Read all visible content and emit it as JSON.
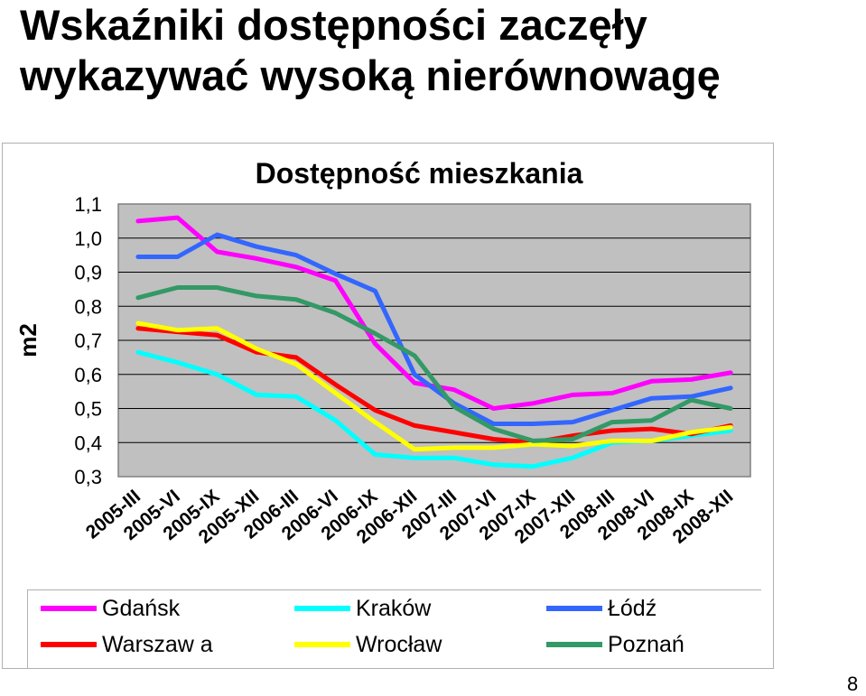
{
  "slide": {
    "title_line1": "Wskaźniki dostępności zaczęły",
    "title_line2": "wykazywać wysoką nierównowagę",
    "page_number": "8"
  },
  "chart_data": {
    "type": "line",
    "title": "Dostępność mieszkania",
    "xlabel": "",
    "ylabel": "m2",
    "ylim": [
      0.3,
      1.1
    ],
    "yticks": [
      "1,1",
      "1,0",
      "0,9",
      "0,8",
      "0,7",
      "0,6",
      "0,5",
      "0,4",
      "0,3"
    ],
    "grid": true,
    "plot_background": "#c0c0c0",
    "legend_position": "bottom",
    "categories": [
      "2005-III",
      "2005-VI",
      "2005-IX",
      "2005-XII",
      "2006-III",
      "2006-VI",
      "2006-IX",
      "2006-XII",
      "2007-III",
      "2007-VI",
      "2007-IX",
      "2007-XII",
      "2008-III",
      "2008-VI",
      "2008-IX",
      "2008-XII"
    ],
    "series": [
      {
        "name": "Gdańsk",
        "color": "#ff00ff",
        "values": [
          1.05,
          1.06,
          0.96,
          0.94,
          0.915,
          0.875,
          0.69,
          0.575,
          0.555,
          0.5,
          0.515,
          0.54,
          0.545,
          0.58,
          0.585,
          0.605
        ]
      },
      {
        "name": "Kraków",
        "color": "#00ffff",
        "values": [
          0.665,
          0.635,
          0.6,
          0.54,
          0.535,
          0.465,
          0.365,
          0.355,
          0.355,
          0.335,
          0.33,
          0.355,
          0.4,
          0.405,
          0.42,
          0.435
        ]
      },
      {
        "name": "Łódź",
        "color": "#3366ff",
        "values": [
          0.945,
          0.945,
          1.01,
          0.975,
          0.95,
          0.895,
          0.845,
          0.6,
          0.515,
          0.455,
          0.455,
          0.46,
          0.495,
          0.53,
          0.535,
          0.56
        ]
      },
      {
        "name": "Warszawa",
        "color": "#ff0000",
        "values": [
          0.735,
          0.725,
          0.715,
          0.665,
          0.65,
          0.57,
          0.495,
          0.45,
          0.43,
          0.41,
          0.4,
          0.42,
          0.435,
          0.44,
          0.425,
          0.45
        ]
      },
      {
        "name": "Wrocław",
        "color": "#ffff00",
        "values": [
          0.75,
          0.73,
          0.735,
          0.675,
          0.63,
          0.545,
          0.46,
          0.38,
          0.385,
          0.385,
          0.395,
          0.39,
          0.405,
          0.405,
          0.43,
          0.445
        ]
      },
      {
        "name": "Poznań",
        "color": "#339966",
        "values": [
          0.825,
          0.855,
          0.855,
          0.83,
          0.82,
          0.78,
          0.72,
          0.655,
          0.505,
          0.44,
          0.405,
          0.41,
          0.46,
          0.465,
          0.525,
          0.5
        ]
      }
    ]
  },
  "legend": {
    "items": [
      {
        "label": "Gdańsk",
        "color": "#ff00ff"
      },
      {
        "label": "Kraków",
        "color": "#00ffff"
      },
      {
        "label": "Łódź",
        "color": "#3366ff"
      },
      {
        "label": "Warszaw a",
        "color": "#ff0000"
      },
      {
        "label": "Wrocław",
        "color": "#ffff00"
      },
      {
        "label": "Poznań",
        "color": "#339966"
      }
    ]
  }
}
